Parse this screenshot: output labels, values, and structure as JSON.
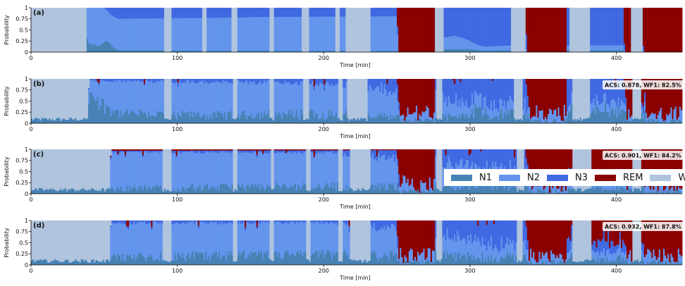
{
  "colors": {
    "N1": "#4682b4",
    "N2": "#6495ed",
    "N3": "#4169e1",
    "REM": "#8b0000",
    "W": "#b0c4de"
  },
  "legend_title": "",
  "chart_data": [
    {
      "type": "area",
      "panel_label": "(a)",
      "stacked": true,
      "annotation": "",
      "xlabel": "Time [min]",
      "ylabel": "Probability",
      "xlim": [
        0,
        445
      ],
      "ylim": [
        0,
        1
      ],
      "xticks": [
        0,
        100,
        200,
        300,
        400
      ],
      "yticks": [
        "0",
        "0.25",
        "0.5",
        "0.75",
        "1"
      ],
      "series_order": [
        "N1",
        "N2",
        "N3",
        "REM",
        "W"
      ],
      "series": [
        {
          "name": "N1",
          "values": [
            [
              0,
              0
            ],
            [
              36,
              0
            ],
            [
              38,
              0.18
            ],
            [
              44,
              0.18
            ],
            [
              46,
              0.12
            ],
            [
              52,
              0.25
            ],
            [
              56,
              0.1
            ],
            [
              60,
              0.05
            ],
            [
              445,
              0
            ]
          ]
        },
        {
          "name": "N2",
          "values": [
            [
              0,
              0
            ],
            [
              37,
              0
            ],
            [
              40,
              0.82
            ],
            [
              44,
              0.88
            ],
            [
              55,
              0.6
            ],
            [
              60,
              0.85
            ],
            [
              140,
              0.9
            ],
            [
              160,
              0.95
            ],
            [
              250,
              0.9
            ],
            [
              251,
              0
            ],
            [
              290,
              0.1
            ],
            [
              300,
              0.05
            ],
            [
              445,
              0
            ]
          ]
        },
        {
          "name": "N3",
          "values": [
            [
              0,
              0
            ],
            [
              50,
              0
            ],
            [
              60,
              0.3
            ],
            [
              300,
              0.2
            ],
            [
              310,
              0.45
            ],
            [
              330,
              0.3
            ],
            [
              445,
              0
            ]
          ]
        },
        {
          "name": "REM",
          "values": [
            [
              0,
              0
            ],
            [
              250,
              0
            ],
            [
              251,
              1
            ],
            [
              275,
              1
            ],
            [
              276,
              0
            ],
            [
              338,
              0
            ],
            [
              339,
              1
            ],
            [
              340,
              1
            ],
            [
              365,
              1
            ],
            [
              366,
              0
            ],
            [
              405,
              0
            ],
            [
              406,
              1
            ],
            [
              410,
              1
            ],
            [
              411,
              0
            ],
            [
              418,
              0
            ],
            [
              419,
              1
            ],
            [
              445,
              1
            ]
          ]
        },
        {
          "name": "W",
          "values": [
            [
              0,
              1
            ],
            [
              36,
              1
            ],
            [
              38,
              0
            ],
            [
              445,
              0
            ]
          ]
        }
      ],
      "wake_windows": [
        [
          0,
          38
        ],
        [
          91,
          96
        ],
        [
          117,
          120
        ],
        [
          137,
          141
        ],
        [
          163,
          166
        ],
        [
          185,
          190
        ],
        [
          208,
          211
        ],
        [
          215,
          232
        ],
        [
          276,
          282
        ],
        [
          328,
          338
        ],
        [
          368,
          382
        ],
        [
          410,
          418
        ]
      ],
      "rem_windows": [
        [
          251,
          276
        ],
        [
          339,
          366
        ],
        [
          406,
          410
        ],
        [
          419,
          445
        ]
      ]
    },
    {
      "type": "area",
      "panel_label": "(b)",
      "stacked": true,
      "annotation": "ACS: 0.878, WF1: 82.5%",
      "xlabel": "Time [min]",
      "ylabel": "Probability",
      "xlim": [
        0,
        445
      ],
      "ylim": [
        0,
        1
      ],
      "xticks": [
        0,
        100,
        200,
        300,
        400
      ],
      "yticks": [
        "0",
        "0.25",
        "0.5",
        "0.75",
        "1"
      ],
      "series_order": [
        "N1",
        "N2",
        "N3",
        "REM",
        "W"
      ],
      "series": [
        {
          "name": "N1",
          "values": [
            [
              0,
              0.05
            ],
            [
              20,
              0.15
            ],
            [
              38,
              0.25
            ],
            [
              40,
              0.6
            ],
            [
              60,
              0.2
            ],
            [
              120,
              0.15
            ],
            [
              200,
              0.2
            ],
            [
              250,
              0.15
            ],
            [
              445,
              0.15
            ]
          ]
        },
        {
          "name": "N2",
          "values": [
            [
              0,
              0
            ],
            [
              38,
              0
            ],
            [
              40,
              0.4
            ],
            [
              60,
              0.75
            ],
            [
              200,
              0.7
            ],
            [
              250,
              0.75
            ],
            [
              251,
              0.1
            ],
            [
              280,
              0.5
            ],
            [
              300,
              0.2
            ],
            [
              445,
              0.1
            ]
          ]
        },
        {
          "name": "N3",
          "values": [
            [
              0,
              0
            ],
            [
              60,
              0.05
            ],
            [
              200,
              0.1
            ],
            [
              290,
              0.5
            ],
            [
              330,
              0.6
            ],
            [
              445,
              0.1
            ]
          ]
        },
        {
          "name": "REM",
          "values": [
            [
              0,
              0
            ],
            [
              250,
              0
            ],
            [
              252,
              0.7
            ],
            [
              275,
              0.6
            ],
            [
              276,
              0
            ],
            [
              338,
              0
            ],
            [
              340,
              0.7
            ],
            [
              365,
              0.6
            ],
            [
              366,
              0
            ],
            [
              405,
              0
            ],
            [
              407,
              0.6
            ],
            [
              445,
              0.6
            ]
          ]
        },
        {
          "name": "W",
          "values": [
            [
              0,
              0.95
            ],
            [
              38,
              0.75
            ],
            [
              40,
              0
            ],
            [
              445,
              0
            ]
          ]
        }
      ],
      "wake_windows": [
        [
          0,
          39
        ],
        [
          91,
          96
        ],
        [
          138,
          141
        ],
        [
          163,
          166
        ],
        [
          186,
          190
        ],
        [
          210,
          213
        ],
        [
          216,
          230
        ],
        [
          277,
          281
        ],
        [
          330,
          336
        ],
        [
          370,
          382
        ],
        [
          411,
          417
        ]
      ],
      "rem_windows": [
        [
          252,
          276
        ],
        [
          340,
          366
        ],
        [
          407,
          411
        ],
        [
          420,
          445
        ]
      ]
    },
    {
      "type": "area",
      "panel_label": "(c)",
      "stacked": true,
      "annotation": "ACS: 0.901, WF1: 84.2%",
      "xlabel": "Time [min]",
      "ylabel": "Probability",
      "xlim": [
        0,
        445
      ],
      "ylim": [
        0,
        1
      ],
      "xticks": [
        0,
        100,
        200,
        300,
        400
      ],
      "yticks": [
        "0",
        "0.25",
        "0.5",
        "0.75",
        "1"
      ],
      "series_order": [
        "N1",
        "N2",
        "N3",
        "REM",
        "W"
      ],
      "series": [
        {
          "name": "N1",
          "values": [
            [
              0,
              0.05
            ],
            [
              40,
              0.1
            ],
            [
              52,
              0.15
            ],
            [
              55,
              0.1
            ],
            [
              200,
              0.15
            ],
            [
              445,
              0.15
            ]
          ]
        },
        {
          "name": "N2",
          "values": [
            [
              0,
              0
            ],
            [
              52,
              0
            ],
            [
              55,
              0.8
            ],
            [
              200,
              0.75
            ],
            [
              250,
              0.7
            ],
            [
              251,
              0.1
            ],
            [
              290,
              0.5
            ],
            [
              445,
              0.15
            ]
          ]
        },
        {
          "name": "N3",
          "values": [
            [
              0,
              0
            ],
            [
              60,
              0.03
            ],
            [
              200,
              0.05
            ],
            [
              290,
              0.3
            ],
            [
              330,
              0.5
            ],
            [
              445,
              0.1
            ]
          ]
        },
        {
          "name": "REM",
          "values": [
            [
              0,
              0
            ],
            [
              55,
              0.03
            ],
            [
              250,
              0.02
            ],
            [
              252,
              0.8
            ],
            [
              275,
              0.7
            ],
            [
              276,
              0
            ],
            [
              338,
              0
            ],
            [
              340,
              0.75
            ],
            [
              366,
              0.7
            ],
            [
              445,
              0.7
            ]
          ]
        },
        {
          "name": "W",
          "values": [
            [
              0,
              0.95
            ],
            [
              52,
              0.85
            ],
            [
              55,
              0
            ],
            [
              445,
              0
            ]
          ]
        }
      ],
      "wake_windows": [
        [
          0,
          54
        ],
        [
          90,
          96
        ],
        [
          138,
          141
        ],
        [
          164,
          166
        ],
        [
          188,
          191
        ],
        [
          210,
          213
        ],
        [
          218,
          232
        ],
        [
          277,
          281
        ],
        [
          332,
          337
        ],
        [
          370,
          383
        ],
        [
          411,
          417
        ]
      ],
      "rem_windows": [
        [
          252,
          276
        ],
        [
          340,
          367
        ],
        [
          407,
          411
        ],
        [
          419,
          445
        ]
      ]
    },
    {
      "type": "area",
      "panel_label": "(d)",
      "stacked": true,
      "annotation": "ACS: 0.932, WF1: 87.8%",
      "xlabel": "Time [min]",
      "ylabel": "Probability",
      "xlim": [
        0,
        445
      ],
      "ylim": [
        0,
        1
      ],
      "xticks": [
        0,
        100,
        200,
        300,
        400
      ],
      "yticks": [
        "0",
        "0.25",
        "0.5",
        "0.75",
        "1"
      ],
      "series_order": [
        "N1",
        "N2",
        "N3",
        "REM",
        "W"
      ],
      "series": [
        {
          "name": "N1",
          "values": [
            [
              0,
              0.15
            ],
            [
              30,
              0.25
            ],
            [
              40,
              0.35
            ],
            [
              52,
              0.3
            ],
            [
              55,
              0.15
            ],
            [
              200,
              0.2
            ],
            [
              445,
              0.15
            ]
          ]
        },
        {
          "name": "N2",
          "values": [
            [
              0,
              0
            ],
            [
              52,
              0
            ],
            [
              55,
              0.75
            ],
            [
              200,
              0.7
            ],
            [
              250,
              0.7
            ],
            [
              251,
              0.1
            ],
            [
              290,
              0.45
            ],
            [
              445,
              0.15
            ]
          ]
        },
        {
          "name": "N3",
          "values": [
            [
              0,
              0
            ],
            [
              60,
              0.05
            ],
            [
              200,
              0.05
            ],
            [
              290,
              0.35
            ],
            [
              320,
              0.8
            ],
            [
              330,
              0.6
            ],
            [
              445,
              0.1
            ]
          ]
        },
        {
          "name": "REM",
          "values": [
            [
              0,
              0
            ],
            [
              250,
              0
            ],
            [
              251,
              0.95
            ],
            [
              275,
              0.9
            ],
            [
              276,
              0
            ],
            [
              338,
              0
            ],
            [
              340,
              0.8
            ],
            [
              366,
              0.75
            ],
            [
              445,
              0.75
            ]
          ]
        },
        {
          "name": "W",
          "values": [
            [
              0,
              0.85
            ],
            [
              52,
              0.6
            ],
            [
              55,
              0
            ],
            [
              445,
              0
            ]
          ]
        }
      ],
      "wake_windows": [
        [
          0,
          54
        ],
        [
          90,
          96
        ],
        [
          138,
          141
        ],
        [
          163,
          166
        ],
        [
          188,
          191
        ],
        [
          210,
          213
        ],
        [
          218,
          232
        ],
        [
          277,
          281
        ],
        [
          332,
          336
        ],
        [
          370,
          383
        ],
        [
          411,
          417
        ]
      ],
      "rem_windows": [
        [
          251,
          276
        ],
        [
          340,
          366
        ],
        [
          407,
          411
        ],
        [
          419,
          445
        ]
      ]
    }
  ],
  "legend": {
    "items": [
      {
        "key": "N1",
        "label": "N1"
      },
      {
        "key": "N2",
        "label": "N2"
      },
      {
        "key": "N3",
        "label": "N3"
      },
      {
        "key": "REM",
        "label": "REM"
      },
      {
        "key": "W",
        "label": "W"
      }
    ]
  }
}
